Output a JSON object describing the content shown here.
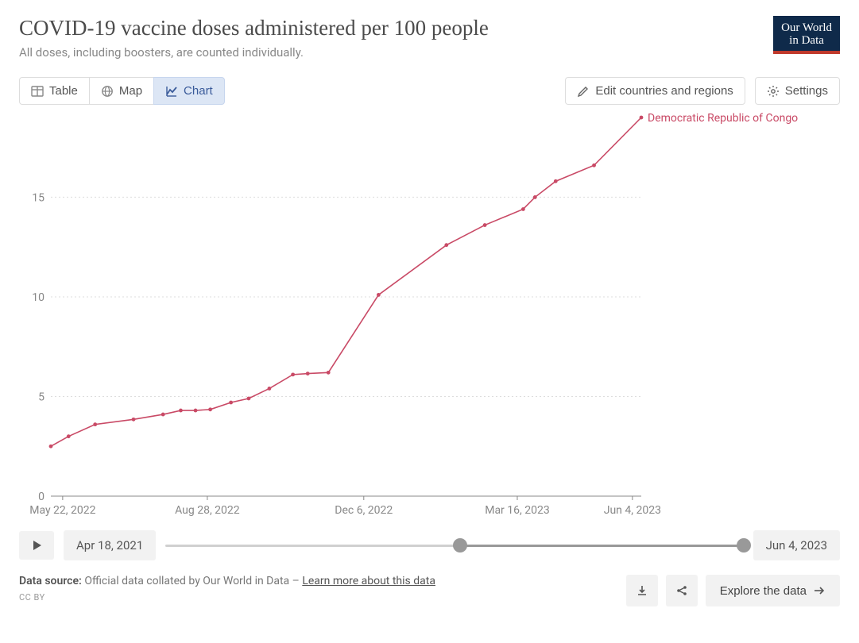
{
  "header": {
    "title": "COVID-19 vaccine doses administered per 100 people",
    "subtitle": "All doses, including boosters, are counted individually.",
    "logo_line1": "Our World",
    "logo_line2": "in Data"
  },
  "tabs": {
    "table": "Table",
    "map": "Map",
    "chart": "Chart",
    "active": "chart"
  },
  "actions": {
    "edit": "Edit countries and regions",
    "settings": "Settings"
  },
  "chart": {
    "type": "line",
    "series_label": "Democratic Republic of Congo",
    "series_color": "#c94a66",
    "background_color": "#ffffff",
    "grid_color": "#dddddd",
    "text_color": "#888888",
    "y": {
      "min": 0,
      "max": 19,
      "ticks": [
        0,
        5,
        10,
        15
      ],
      "label_fontsize": 14
    },
    "x": {
      "ticks": [
        {
          "t": 0.02,
          "label": "May 22, 2022"
        },
        {
          "t": 0.265,
          "label": "Aug 28, 2022"
        },
        {
          "t": 0.53,
          "label": "Dec 6, 2022"
        },
        {
          "t": 0.79,
          "label": "Mar 16, 2023"
        },
        {
          "t": 0.985,
          "label": "Jun 4, 2023"
        }
      ],
      "label_fontsize": 14
    },
    "points": [
      {
        "t": 0.0,
        "v": 2.5
      },
      {
        "t": 0.03,
        "v": 3.0
      },
      {
        "t": 0.075,
        "v": 3.6
      },
      {
        "t": 0.14,
        "v": 3.85
      },
      {
        "t": 0.19,
        "v": 4.1
      },
      {
        "t": 0.22,
        "v": 4.3
      },
      {
        "t": 0.245,
        "v": 4.3
      },
      {
        "t": 0.27,
        "v": 4.35
      },
      {
        "t": 0.305,
        "v": 4.7
      },
      {
        "t": 0.335,
        "v": 4.9
      },
      {
        "t": 0.37,
        "v": 5.4
      },
      {
        "t": 0.41,
        "v": 6.1
      },
      {
        "t": 0.435,
        "v": 6.15
      },
      {
        "t": 0.47,
        "v": 6.2
      },
      {
        "t": 0.555,
        "v": 10.1
      },
      {
        "t": 0.67,
        "v": 12.6
      },
      {
        "t": 0.735,
        "v": 13.6
      },
      {
        "t": 0.8,
        "v": 14.4
      },
      {
        "t": 0.82,
        "v": 15.0
      },
      {
        "t": 0.855,
        "v": 15.8
      },
      {
        "t": 0.92,
        "v": 16.6
      },
      {
        "t": 1.0,
        "v": 19.0
      }
    ],
    "marker_radius": 2.4,
    "line_width": 1.6
  },
  "timeline": {
    "start_label": "Apr 18, 2021",
    "end_label": "Jun 4, 2023",
    "handle_start_pct": 51,
    "handle_end_pct": 100
  },
  "footer": {
    "source_prefix": "Data source:",
    "source_text": " Official data collated by Our World in Data – ",
    "learn_more": "Learn more about this data",
    "license": "CC BY",
    "explore": "Explore the data"
  }
}
